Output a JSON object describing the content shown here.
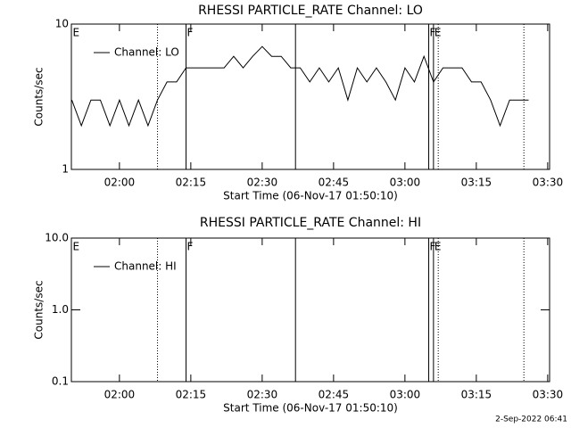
{
  "chart_data": [
    {
      "type": "line",
      "title": "RHESSI PARTICLE_RATE Channel: LO",
      "xlabel": "Start Time (06-Nov-17 01:50:10)",
      "ylabel": "Counts/sec",
      "x": [
        "01:50",
        "01:52",
        "01:54",
        "01:56",
        "01:58",
        "02:00",
        "02:02",
        "02:04",
        "02:06",
        "02:08",
        "02:10",
        "02:12",
        "02:14",
        "02:16",
        "02:18",
        "02:20",
        "02:22",
        "02:24",
        "02:26",
        "02:28",
        "02:30",
        "02:32",
        "02:34",
        "02:36",
        "02:38",
        "02:40",
        "02:42",
        "02:44",
        "02:46",
        "02:48",
        "02:50",
        "02:52",
        "02:54",
        "02:56",
        "02:58",
        "03:00",
        "03:02",
        "03:04",
        "03:06",
        "03:08",
        "03:10",
        "03:12",
        "03:14",
        "03:16",
        "03:18",
        "03:20",
        "03:22",
        "03:24",
        "03:26"
      ],
      "series": [
        {
          "name": "Channel: LO",
          "color": "#000000",
          "values": [
            3,
            2,
            3,
            3,
            2,
            3,
            2,
            3,
            2,
            3,
            4,
            4,
            5,
            5,
            5,
            5,
            5,
            6,
            5,
            6,
            7,
            6,
            6,
            5,
            5,
            4,
            5,
            4,
            5,
            3,
            5,
            4,
            5,
            4,
            3,
            5,
            4,
            6,
            4,
            5,
            5,
            5,
            4,
            4,
            3,
            2,
            3,
            3,
            3
          ]
        }
      ],
      "xlim": [
        "01:49:54",
        "03:30:24"
      ],
      "xticks": [
        "02:00",
        "02:15",
        "02:30",
        "02:45",
        "03:00",
        "03:15",
        "03:30"
      ],
      "ylim": [
        1,
        10
      ],
      "yticks": [
        1,
        10
      ],
      "log_scale": true,
      "legend": "top-left",
      "vlines": [
        {
          "x": "02:08",
          "style": "dotted"
        },
        {
          "x": "02:14",
          "style": "solid"
        },
        {
          "x": "02:37",
          "style": "solid"
        },
        {
          "x": "03:05",
          "style": "solid"
        },
        {
          "x": "03:06",
          "style": "solid"
        },
        {
          "x": "03:07",
          "style": "dotted"
        },
        {
          "x": "03:25",
          "style": "dotted"
        }
      ],
      "flags": [
        {
          "x": "01:50",
          "label": "E"
        },
        {
          "x": "02:14",
          "label": "F"
        },
        {
          "x": "03:05",
          "label": "F"
        },
        {
          "x": "03:06",
          "label": "E"
        }
      ]
    },
    {
      "type": "line",
      "title": "RHESSI PARTICLE_RATE Channel: HI",
      "xlabel": "Start Time (06-Nov-17 01:50:10)",
      "ylabel": "Counts/sec",
      "x": [],
      "series": [
        {
          "name": "Channel: HI",
          "color": "#000000",
          "values": []
        }
      ],
      "xlim": [
        "01:49:54",
        "03:30:24"
      ],
      "xticks": [
        "02:00",
        "02:15",
        "02:30",
        "02:45",
        "03:00",
        "03:15",
        "03:30"
      ],
      "ylim": [
        0.1,
        10
      ],
      "yticks": [
        0.1,
        {
          "value": 1,
          "label": "1.0"
        },
        {
          "value": 10,
          "label": "10.0"
        }
      ],
      "log_scale": true,
      "legend": "top-left",
      "vlines": [
        {
          "x": "02:08",
          "style": "dotted"
        },
        {
          "x": "02:14",
          "style": "solid"
        },
        {
          "x": "02:37",
          "style": "solid"
        },
        {
          "x": "03:05",
          "style": "solid"
        },
        {
          "x": "03:06",
          "style": "solid"
        },
        {
          "x": "03:07",
          "style": "dotted"
        },
        {
          "x": "03:25",
          "style": "dotted"
        }
      ],
      "flags": [
        {
          "x": "01:50",
          "label": "E"
        },
        {
          "x": "02:14",
          "label": "F"
        },
        {
          "x": "03:05",
          "label": "F"
        },
        {
          "x": "03:06",
          "label": "E"
        }
      ]
    }
  ],
  "footer": "2-Sep-2022 06:41"
}
